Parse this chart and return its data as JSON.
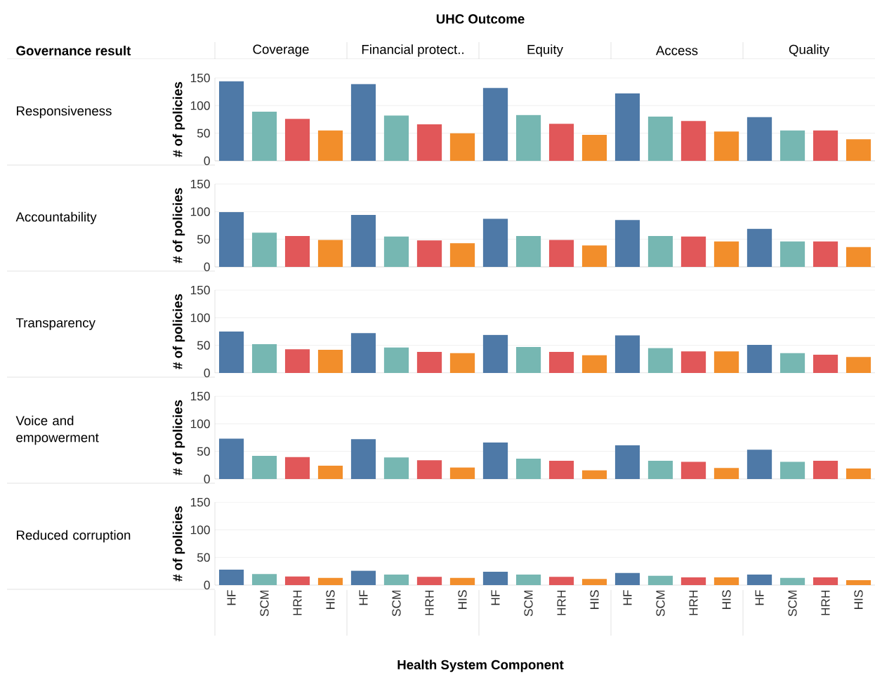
{
  "chart_data": [
    {
      "type": "bar",
      "ylabel": "# of policies",
      "annotations": [
        "Responsiveness",
        "UHC Outcome",
        "Governance result",
        "Health System Component",
        "Coverage",
        "Financial protect..",
        "Equity",
        "Access",
        "Quality"
      ],
      "categories": [
        null,
        null,
        null,
        null,
        null,
        null,
        null,
        null,
        null,
        null,
        null,
        null,
        null,
        null,
        null,
        null,
        null,
        null,
        null,
        null
      ],
      "values": [
        144,
        89,
        76,
        55,
        139,
        82,
        66,
        50,
        132,
        83,
        67,
        47,
        122,
        80,
        72,
        53,
        79,
        55,
        55,
        39
      ],
      "colors": [
        "#4e79a7",
        "#76b7b2",
        "#e15759",
        "#f28e2b",
        "#4e79a7",
        "#76b7b2",
        "#e15759",
        "#f28e2b",
        "#4e79a7",
        "#76b7b2",
        "#e15759",
        "#f28e2b",
        "#4e79a7",
        "#76b7b2",
        "#e15759",
        "#f28e2b",
        "#4e79a7",
        "#76b7b2",
        "#e15759",
        "#f28e2b"
      ],
      "ylim": [
        0,
        150
      ],
      "yticks": [
        0,
        50,
        100,
        150
      ],
      "grid": "y",
      "tick_labels": "y"
    },
    {
      "type": "bar",
      "ylabel": "# of policies",
      "annotations": [
        "Accountability"
      ],
      "categories": [
        null,
        null,
        null,
        null,
        null,
        null,
        null,
        null,
        null,
        null,
        null,
        null,
        null,
        null,
        null,
        null,
        null,
        null,
        null,
        null
      ],
      "values": [
        99,
        62,
        56,
        49,
        94,
        55,
        48,
        43,
        87,
        56,
        49,
        39,
        85,
        56,
        55,
        46,
        69,
        46,
        46,
        36
      ],
      "colors": [
        "#4e79a7",
        "#76b7b2",
        "#e15759",
        "#f28e2b",
        "#4e79a7",
        "#76b7b2",
        "#e15759",
        "#f28e2b",
        "#4e79a7",
        "#76b7b2",
        "#e15759",
        "#f28e2b",
        "#4e79a7",
        "#76b7b2",
        "#e15759",
        "#f28e2b",
        "#4e79a7",
        "#76b7b2",
        "#e15759",
        "#f28e2b"
      ],
      "ylim": [
        0,
        150
      ],
      "yticks": [
        0,
        50,
        100,
        150
      ],
      "grid": "y",
      "tick_labels": "y"
    },
    {
      "type": "bar",
      "ylabel": "# of policies",
      "annotations": [
        "Transparency"
      ],
      "categories": [
        null,
        null,
        null,
        null,
        null,
        null,
        null,
        null,
        null,
        null,
        null,
        null,
        null,
        null,
        null,
        null,
        null,
        null,
        null,
        null
      ],
      "values": [
        75,
        52,
        43,
        42,
        72,
        46,
        38,
        36,
        69,
        47,
        38,
        32,
        68,
        45,
        39,
        39,
        51,
        36,
        33,
        29
      ],
      "colors": [
        "#4e79a7",
        "#76b7b2",
        "#e15759",
        "#f28e2b",
        "#4e79a7",
        "#76b7b2",
        "#e15759",
        "#f28e2b",
        "#4e79a7",
        "#76b7b2",
        "#e15759",
        "#f28e2b",
        "#4e79a7",
        "#76b7b2",
        "#e15759",
        "#f28e2b",
        "#4e79a7",
        "#76b7b2",
        "#e15759",
        "#f28e2b"
      ],
      "ylim": [
        0,
        150
      ],
      "yticks": [
        0,
        50,
        100,
        150
      ],
      "grid": "y",
      "tick_labels": "y"
    },
    {
      "type": "bar",
      "ylabel": "# of policies",
      "annotations": [
        "Voice and empowerment"
      ],
      "categories": [
        null,
        null,
        null,
        null,
        null,
        null,
        null,
        null,
        null,
        null,
        null,
        null,
        null,
        null,
        null,
        null,
        null,
        null,
        null,
        null
      ],
      "values": [
        73,
        42,
        40,
        24,
        72,
        39,
        34,
        21,
        66,
        37,
        33,
        16,
        61,
        33,
        31,
        20,
        53,
        31,
        33,
        19
      ],
      "colors": [
        "#4e79a7",
        "#76b7b2",
        "#e15759",
        "#f28e2b",
        "#4e79a7",
        "#76b7b2",
        "#e15759",
        "#f28e2b",
        "#4e79a7",
        "#76b7b2",
        "#e15759",
        "#f28e2b",
        "#4e79a7",
        "#76b7b2",
        "#e15759",
        "#f28e2b",
        "#4e79a7",
        "#76b7b2",
        "#e15759",
        "#f28e2b"
      ],
      "ylim": [
        0,
        150
      ],
      "yticks": [
        0,
        50,
        100,
        150
      ],
      "grid": "y",
      "tick_labels": "y"
    },
    {
      "type": "bar",
      "ylabel": "# of policies",
      "annotations": [
        "Reduced corruption"
      ],
      "categories": [
        "HF",
        "SCM",
        "HRH",
        "HIS",
        "HF",
        "SCM",
        "HRH",
        "HIS",
        "HF",
        "SCM",
        "HRH",
        "HIS",
        "HF",
        "SCM",
        "HRH",
        "HIS",
        "HF",
        "SCM",
        "HRH",
        "HIS"
      ],
      "values": [
        28,
        20,
        16,
        13,
        26,
        19,
        15,
        13,
        24,
        19,
        15,
        11,
        22,
        17,
        14,
        14,
        19,
        13,
        14,
        9
      ],
      "colors": [
        "#4e79a7",
        "#76b7b2",
        "#e15759",
        "#f28e2b",
        "#4e79a7",
        "#76b7b2",
        "#e15759",
        "#f28e2b",
        "#4e79a7",
        "#76b7b2",
        "#e15759",
        "#f28e2b",
        "#4e79a7",
        "#76b7b2",
        "#e15759",
        "#f28e2b",
        "#4e79a7",
        "#76b7b2",
        "#e15759",
        "#f28e2b"
      ],
      "ylim": [
        0,
        150
      ],
      "yticks": [
        0,
        50,
        100,
        150
      ],
      "grid": "y"
    }
  ]
}
